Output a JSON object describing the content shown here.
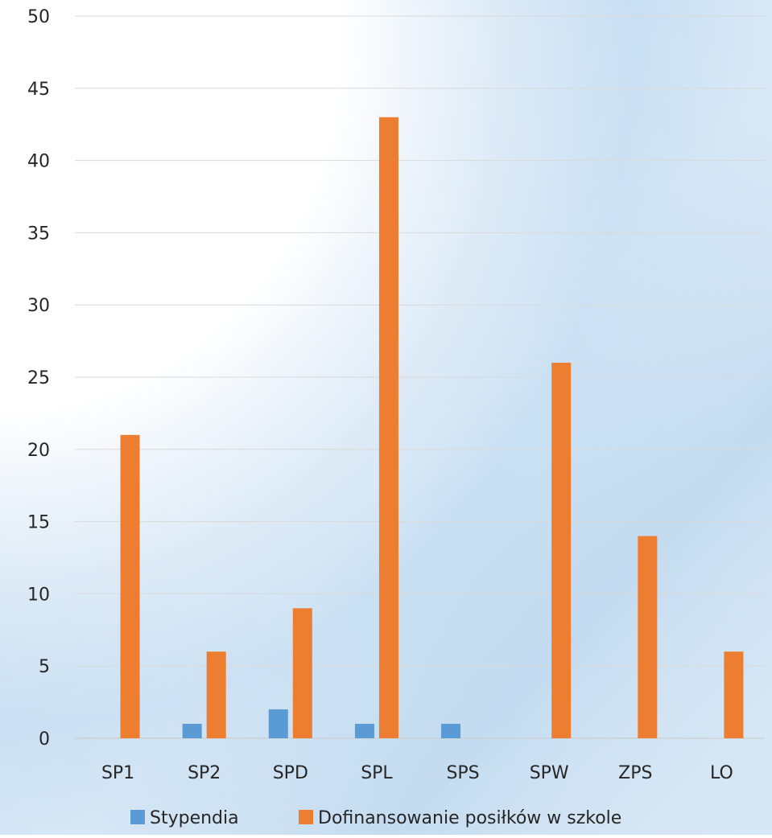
{
  "chart_data": {
    "type": "bar",
    "title": "",
    "xlabel": "",
    "ylabel": "",
    "categories": [
      "SP1",
      "SP2",
      "SPD",
      "SPL",
      "SPS",
      "SPW",
      "ZPS",
      "LO"
    ],
    "series": [
      {
        "name": "Stypendia",
        "color": "#5b9bd5",
        "values": [
          0,
          1,
          2,
          1,
          1,
          0,
          0,
          0
        ]
      },
      {
        "name": "Dofinansowanie posiłków w szkole",
        "color": "#ed7d31",
        "values": [
          21,
          6,
          9,
          43,
          0,
          26,
          14,
          6
        ]
      }
    ],
    "ylim": [
      0,
      50
    ],
    "yticks": [
      0,
      5,
      10,
      15,
      20,
      25,
      30,
      35,
      40,
      45,
      50
    ],
    "grid": true,
    "legend_position": "bottom"
  }
}
